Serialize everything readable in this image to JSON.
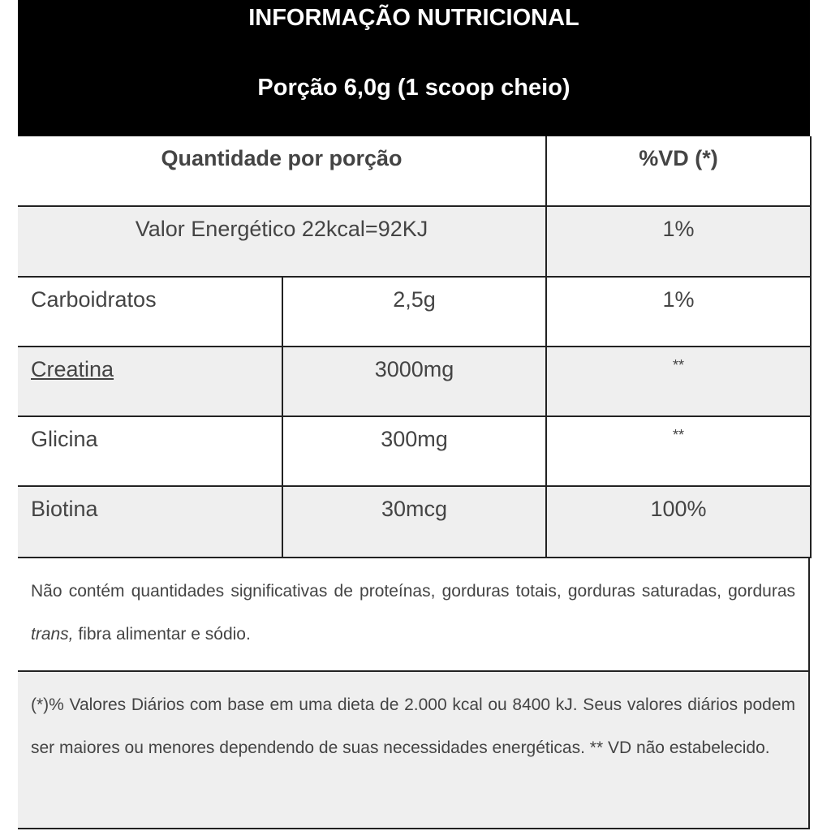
{
  "header": {
    "title": "INFORMAÇÃO NUTRICIONAL",
    "portion": "Porção 6,0g (1 scoop cheio)"
  },
  "table": {
    "col_quantity": "Quantidade por porção",
    "col_vd": "%VD (*)",
    "energy": {
      "label": "Valor Energético 22kcal=92KJ",
      "vd": "1%"
    },
    "rows": [
      {
        "name": "Carboidratos",
        "amount": "2,5g",
        "vd": "1%"
      },
      {
        "name": "Creatina",
        "amount": "3000mg",
        "vd": "**"
      },
      {
        "name": "Glicina",
        "amount": "300mg",
        "vd": "**"
      },
      {
        "name": "Biotina",
        "amount": "30mcg",
        "vd": "100%"
      }
    ]
  },
  "notes": {
    "not_contains_1": "Não contém quantidades significativas de proteínas, gorduras totais, gorduras saturadas, gorduras ",
    "not_contains_trans": "trans,",
    "not_contains_2": " fibra alimentar e sódio.",
    "daily_values": "(*)% Valores Diários com base em uma dieta de 2.000 kcal ou 8400 kJ. Seus valores diários podem ser maiores ou menores dependendo de suas necessidades energéticas. ** VD não estabelecido."
  }
}
